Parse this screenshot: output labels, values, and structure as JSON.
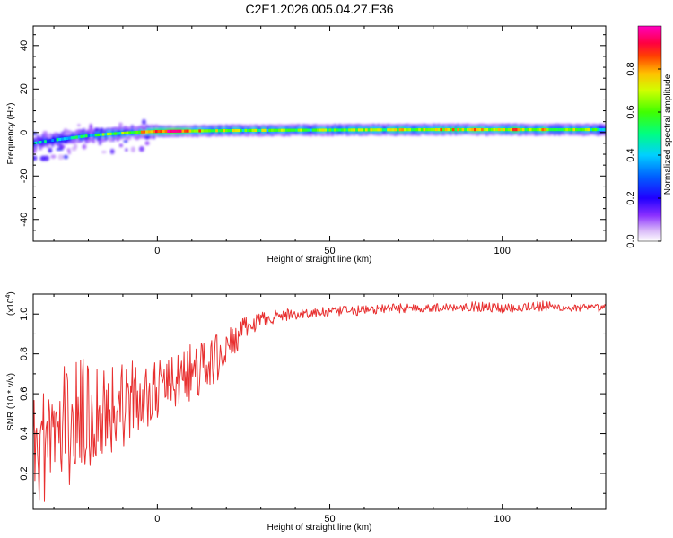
{
  "title": "C2E1.2026.005.04.27.E36",
  "chart_data": [
    {
      "type": "heatmap",
      "name": "spectrogram",
      "xlabel": "Height of straight line (km)",
      "ylabel": "Frequency (Hz)",
      "xlim": [
        -36,
        130
      ],
      "ylim": [
        -50,
        49
      ],
      "xticks": [
        0,
        50,
        100
      ],
      "yticks": [
        -40,
        -20,
        0,
        20,
        40
      ],
      "colorbar": {
        "label": "Normalized spectral amplitude",
        "range": [
          0.0,
          1.0
        ],
        "ticks": [
          0.0,
          0.2,
          0.4,
          0.6,
          0.8
        ],
        "tick_labels": [
          "0.0",
          "0.2",
          "0.4",
          "0.6",
          "0.8"
        ],
        "colors": [
          "#ffffff",
          "#c8a0f0",
          "#6a00ff",
          "#0000ff",
          "#00c8ff",
          "#00ff60",
          "#c8ff00",
          "#ffff00",
          "#ff8000",
          "#ff0000",
          "#ff2080",
          "#ff00c0"
        ]
      },
      "ridge": {
        "x": [
          -36,
          -30,
          -25,
          -20,
          -15,
          -10,
          -5,
          0,
          10,
          20,
          40,
          60,
          80,
          100,
          130
        ],
        "frequency": [
          -5,
          -3.5,
          -2.5,
          -1.5,
          -0.8,
          -0.3,
          0.2,
          0.5,
          0.7,
          0.9,
          1.1,
          1.2,
          1.3,
          1.3,
          1.3
        ],
        "amplitude": [
          0.3,
          0.35,
          0.4,
          0.45,
          0.5,
          0.6,
          0.75,
          0.95,
          0.75,
          0.6,
          0.55,
          0.6,
          0.7,
          0.75,
          0.55
        ]
      }
    },
    {
      "type": "line",
      "name": "snr",
      "xlabel": "Height of straight line (km)",
      "ylabel": "SNR (10 * v/v)",
      "scale_label": "(x10",
      "scale_exponent": "4",
      "scale_close": ")",
      "xlim": [
        -36,
        130
      ],
      "ylim": [
        0.02,
        1.1
      ],
      "xticks": [
        0,
        50,
        100
      ],
      "yticks": [
        0.2,
        0.4,
        0.6,
        0.8,
        1.0
      ],
      "ytick_labels": [
        "0.2",
        "0.4",
        "0.6",
        "0.8",
        "1.0"
      ],
      "color": "#e83030",
      "x": [
        -36,
        -30,
        -25,
        -20,
        -15,
        -10,
        -5,
        0,
        5,
        10,
        15,
        20,
        25,
        30,
        35,
        40,
        50,
        60,
        70,
        80,
        90,
        100,
        110,
        120,
        130
      ],
      "center": [
        0.32,
        0.4,
        0.45,
        0.5,
        0.52,
        0.55,
        0.58,
        0.62,
        0.66,
        0.7,
        0.74,
        0.82,
        0.92,
        0.97,
        0.99,
        1.0,
        1.01,
        1.02,
        1.03,
        1.03,
        1.04,
        1.03,
        1.04,
        1.03,
        1.03
      ],
      "spread": [
        0.3,
        0.32,
        0.32,
        0.3,
        0.26,
        0.22,
        0.18,
        0.14,
        0.14,
        0.16,
        0.14,
        0.1,
        0.06,
        0.04,
        0.03,
        0.03,
        0.025,
        0.025,
        0.025,
        0.02,
        0.025,
        0.025,
        0.03,
        0.02,
        0.02
      ]
    }
  ]
}
